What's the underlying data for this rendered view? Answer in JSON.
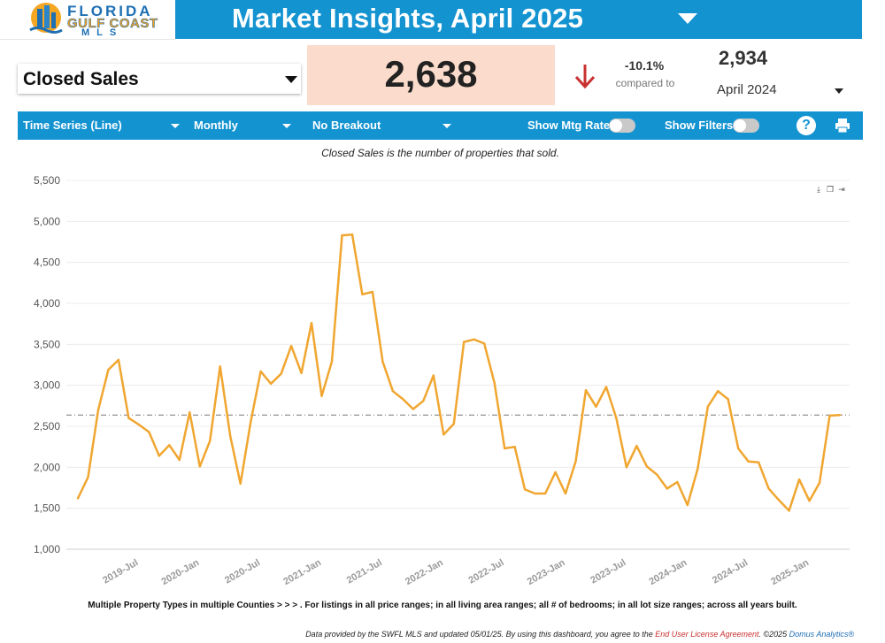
{
  "logo": {
    "line1": "FLORIDA",
    "line2": "GULF COAST",
    "line3": "MLS"
  },
  "header": {
    "title": "Market Insights, April 2025"
  },
  "metric": {
    "selected": "Closed Sales",
    "value": "2,638",
    "change_pct": "-10.1%",
    "compared_label": "compared to",
    "prev_value": "2,934",
    "prev_period": "April 2024"
  },
  "controls": {
    "chart_type": "Time Series (Line)",
    "interval": "Monthly",
    "breakout": "No Breakout",
    "show_mtg_rate_label": "Show Mtg Rate:",
    "show_mtg_rate_on": false,
    "show_filters_label": "Show Filters:",
    "show_filters_on": false,
    "help_label": "?"
  },
  "chart_subtitle": "Closed Sales is the number of properties that sold.",
  "colors": {
    "brand_blue": "#1493d1",
    "line": "#f0a630",
    "value_box": "#fbdccc",
    "down_arrow": "#c8302f",
    "reference_line": "#777777"
  },
  "chart_data": {
    "type": "line",
    "title": "",
    "xlabel": "",
    "ylabel": "",
    "ylim": [
      1000,
      5500
    ],
    "yticks": [
      1000,
      1500,
      2000,
      2500,
      3000,
      3500,
      4000,
      4500,
      5000,
      5500
    ],
    "ytick_labels": [
      "1,000",
      "1,500",
      "2,000",
      "2,500",
      "3,000",
      "3,500",
      "4,000",
      "4,500",
      "5,000",
      "5,500"
    ],
    "xtick_labels": [
      "2019-Jul",
      "2020-Jan",
      "2020-Jul",
      "2021-Jan",
      "2021-Jul",
      "2022-Jan",
      "2022-Jul",
      "2023-Jan",
      "2023-Jul",
      "2024-Jan",
      "2024-Jul",
      "2025-Jan"
    ],
    "x_start": "2019-Jan",
    "x_end": "2025-Apr",
    "reference_value": 2638,
    "grid": true,
    "series": [
      {
        "values": [
          1620,
          1880,
          2700,
          3190,
          3310,
          2600,
          2520,
          2430,
          2140,
          2270,
          2090,
          2670,
          2010,
          2320,
          3230,
          2380,
          1800,
          2550,
          3170,
          3020,
          3140,
          3480,
          3150,
          3760,
          2870,
          3290,
          4830,
          4840,
          4110,
          4140,
          3290,
          2930,
          2830,
          2710,
          2810,
          3120,
          2400,
          2530,
          3530,
          3560,
          3510,
          3030,
          2230,
          2250,
          1730,
          1680,
          1680,
          1940,
          1680,
          2070,
          2940,
          2740,
          2980,
          2600,
          2000,
          2260,
          2010,
          1910,
          1740,
          1820,
          1540,
          1980,
          2740,
          2930,
          2830,
          2230,
          2070,
          2060,
          1740,
          1600,
          1470,
          1850,
          1590,
          1810,
          2630,
          2638
        ]
      }
    ]
  },
  "footnote": "Multiple Property Types in multiple Counties > > > . For listings in all price ranges; in all living area ranges; all # of bedrooms; in all lot size ranges; across all years built.",
  "credits": {
    "text": "Data provided by the SWFL MLS and updated 05/01/25.  By using this dashboard, you agree to the ",
    "license_link": "End User License Agreement",
    "copyright": ".  ©2025 ",
    "brand_link": "Domus Analytics®"
  }
}
